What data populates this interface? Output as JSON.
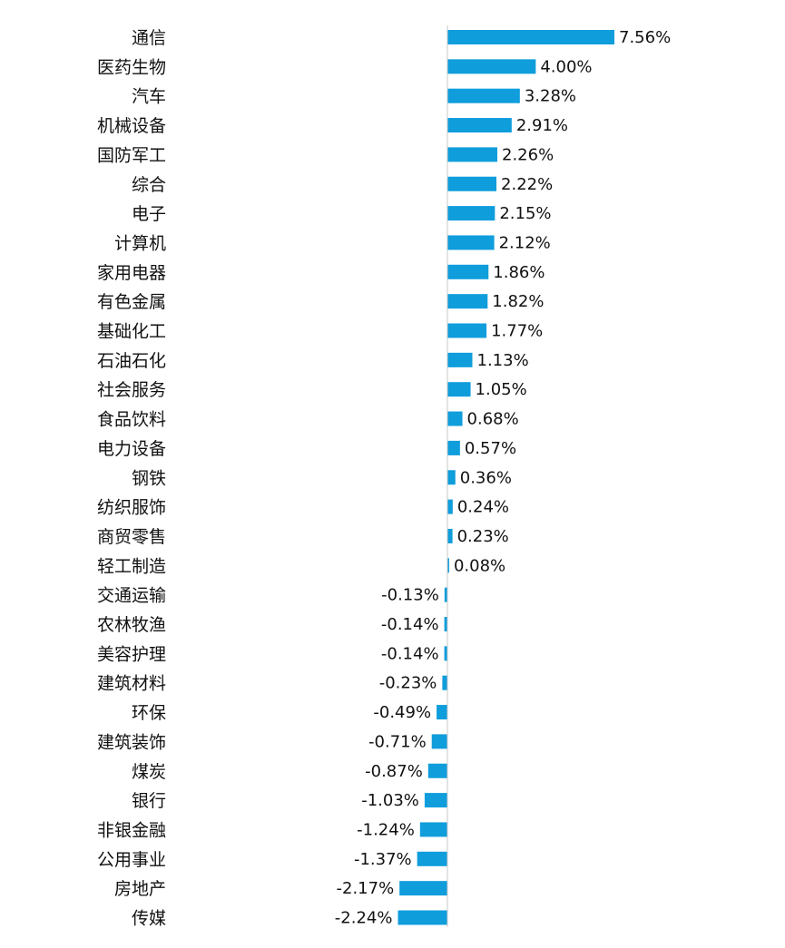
{
  "chart_data": {
    "type": "bar",
    "orientation": "horizontal",
    "categories": [
      "通信",
      "医药生物",
      "汽车",
      "机械设备",
      "国防军工",
      "综合",
      "电子",
      "计算机",
      "家用电器",
      "有色金属",
      "基础化工",
      "石油石化",
      "社会服务",
      "食品饮料",
      "电力设备",
      "钢铁",
      "纺织服饰",
      "商贸零售",
      "轻工制造",
      "交通运输",
      "农林牧渔",
      "美容护理",
      "建筑材料",
      "环保",
      "建筑装饰",
      "煤炭",
      "银行",
      "非银金融",
      "公用事业",
      "房地产",
      "传媒"
    ],
    "values": [
      7.56,
      4.0,
      3.28,
      2.91,
      2.26,
      2.22,
      2.15,
      2.12,
      1.86,
      1.82,
      1.77,
      1.13,
      1.05,
      0.68,
      0.57,
      0.36,
      0.24,
      0.23,
      0.08,
      -0.13,
      -0.14,
      -0.14,
      -0.23,
      -0.49,
      -0.71,
      -0.87,
      -1.03,
      -1.24,
      -1.37,
      -2.17,
      -2.24
    ],
    "value_labels": [
      "7.56%",
      "4.00%",
      "3.28%",
      "2.91%",
      "2.26%",
      "2.22%",
      "2.15%",
      "2.12%",
      "1.86%",
      "1.82%",
      "1.77%",
      "1.13%",
      "1.05%",
      "0.68%",
      "0.57%",
      "0.36%",
      "0.24%",
      "0.23%",
      "0.08%",
      "-0.13%",
      "-0.14%",
      "-0.14%",
      "-0.23%",
      "-0.49%",
      "-0.71%",
      "-0.87%",
      "-1.03%",
      "-1.24%",
      "-1.37%",
      "-2.17%",
      "-2.24%"
    ],
    "unit": "%",
    "xlim": [
      -2.24,
      7.56
    ],
    "grid": false,
    "legend": "none",
    "bar_color": "#0f9ddc",
    "axis_color": "#c8c8c8"
  }
}
